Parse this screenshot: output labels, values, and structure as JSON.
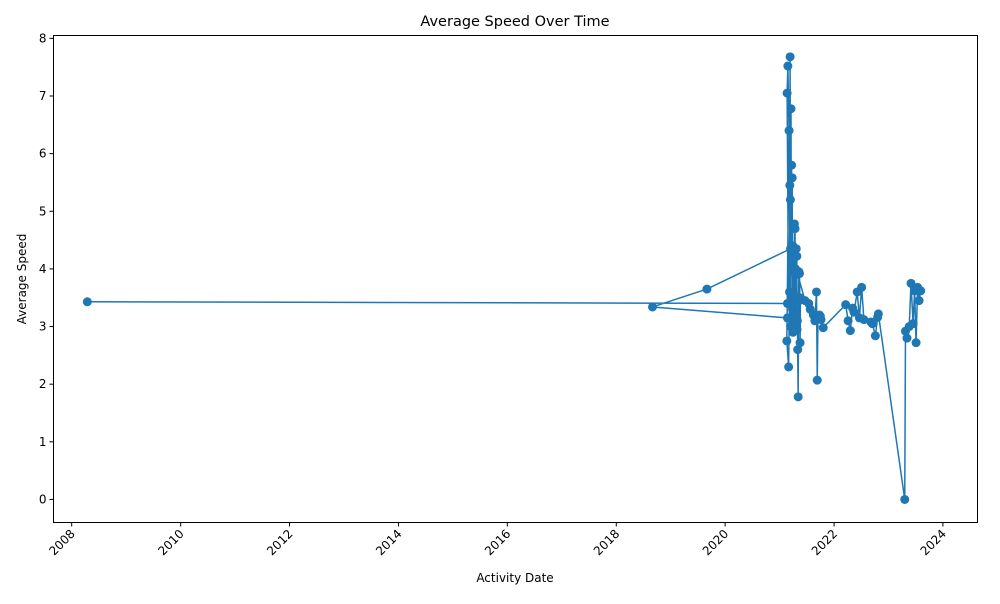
{
  "chart_data": {
    "type": "line",
    "title": "Average Speed Over Time",
    "xlabel": "Activity Date",
    "ylabel": "Average Speed",
    "xlim": [
      "2007-09-01",
      "2024-08-20"
    ],
    "ylim": [
      -0.4,
      8.05
    ],
    "x_ticks": [
      "2008",
      "2010",
      "2012",
      "2014",
      "2016",
      "2018",
      "2020",
      "2022",
      "2024"
    ],
    "y_ticks": [
      "0",
      "1",
      "2",
      "3",
      "4",
      "5",
      "6",
      "7",
      "8"
    ],
    "grid": false,
    "legend": "none",
    "line_color": "#1f77b4",
    "marker": "circle",
    "series": [
      {
        "points": [
          [
            "2021-02-22",
            3.4
          ],
          [
            "2008-04-15",
            3.43
          ],
          [
            "2021-03-01",
            3.4
          ],
          [
            "2021-02-20",
            7.05
          ],
          [
            "2021-02-25",
            7.52
          ],
          [
            "2021-03-05",
            6.4
          ],
          [
            "2021-02-18",
            2.75
          ],
          [
            "2021-03-02",
            2.3
          ],
          [
            "2021-03-08",
            3.6
          ],
          [
            "2021-03-10",
            5.45
          ],
          [
            "2021-03-12",
            7.68
          ],
          [
            "2021-03-14",
            5.2
          ],
          [
            "2021-03-16",
            3.0
          ],
          [
            "2021-03-18",
            6.78
          ],
          [
            "2021-03-20",
            4.2
          ],
          [
            "2021-03-22",
            5.8
          ],
          [
            "2021-03-24",
            4.0
          ],
          [
            "2021-03-26",
            5.58
          ],
          [
            "2021-03-28",
            3.3
          ],
          [
            "2021-03-30",
            4.4
          ],
          [
            "2021-04-02",
            3.6
          ],
          [
            "2021-04-05",
            4.3
          ],
          [
            "2021-04-08",
            3.1
          ],
          [
            "2021-04-10",
            4.78
          ],
          [
            "2021-04-12",
            3.5
          ],
          [
            "2021-04-14",
            4.7
          ],
          [
            "2021-04-16",
            3.2
          ],
          [
            "2021-04-18",
            4.0
          ],
          [
            "2021-04-20",
            3.9
          ],
          [
            "2021-04-22",
            4.35
          ],
          [
            "2021-04-24",
            3.0
          ],
          [
            "2021-04-26",
            4.22
          ],
          [
            "2021-04-28",
            2.95
          ],
          [
            "2021-04-30",
            3.1
          ],
          [
            "2021-05-02",
            2.6
          ],
          [
            "2021-05-05",
            1.78
          ],
          [
            "2021-05-08",
            3.5
          ],
          [
            "2021-05-10",
            3.95
          ],
          [
            "2021-05-12",
            3.45
          ],
          [
            "2021-05-14",
            3.92
          ],
          [
            "2021-05-16",
            3.5
          ],
          [
            "2021-05-18",
            2.72
          ],
          [
            "2021-05-20",
            3.48
          ],
          [
            "2021-04-01",
            2.9
          ],
          [
            "2021-02-22",
            3.15
          ],
          [
            "2018-09-01",
            3.34
          ],
          [
            "2019-09-01",
            3.65
          ],
          [
            "2021-03-15",
            4.35
          ],
          [
            "2021-06-20",
            3.45
          ],
          [
            "2021-07-15",
            3.4
          ],
          [
            "2021-07-25",
            3.3
          ],
          [
            "2021-08-15",
            3.2
          ],
          [
            "2021-08-25",
            3.1
          ],
          [
            "2021-09-05",
            3.6
          ],
          [
            "2021-09-10",
            2.07
          ],
          [
            "2021-09-15",
            3.15
          ],
          [
            "2021-09-25",
            3.2
          ],
          [
            "2021-10-01",
            3.18
          ],
          [
            "2021-10-05",
            3.12
          ],
          [
            "2021-10-20",
            2.98
          ],
          [
            "2022-03-20",
            3.38
          ],
          [
            "2022-04-05",
            3.1
          ],
          [
            "2022-04-20",
            2.93
          ],
          [
            "2022-05-05",
            3.32
          ],
          [
            "2022-05-15",
            3.25
          ],
          [
            "2022-06-05",
            3.6
          ],
          [
            "2022-06-20",
            3.15
          ],
          [
            "2022-07-05",
            3.68
          ],
          [
            "2022-07-20",
            3.12
          ],
          [
            "2022-09-05",
            3.08
          ],
          [
            "2022-09-15",
            3.05
          ],
          [
            "2022-10-05",
            2.84
          ],
          [
            "2022-10-20",
            3.16
          ],
          [
            "2022-10-25",
            3.22
          ],
          [
            "2023-04-20",
            0.0
          ],
          [
            "2023-04-25",
            2.92
          ],
          [
            "2023-05-05",
            2.8
          ],
          [
            "2023-05-20",
            3.0
          ],
          [
            "2023-06-01",
            3.75
          ],
          [
            "2023-06-15",
            3.05
          ],
          [
            "2023-06-25",
            3.62
          ],
          [
            "2023-07-05",
            2.72
          ],
          [
            "2023-07-15",
            3.68
          ],
          [
            "2023-07-25",
            3.45
          ],
          [
            "2023-08-05",
            3.62
          ]
        ]
      }
    ]
  }
}
